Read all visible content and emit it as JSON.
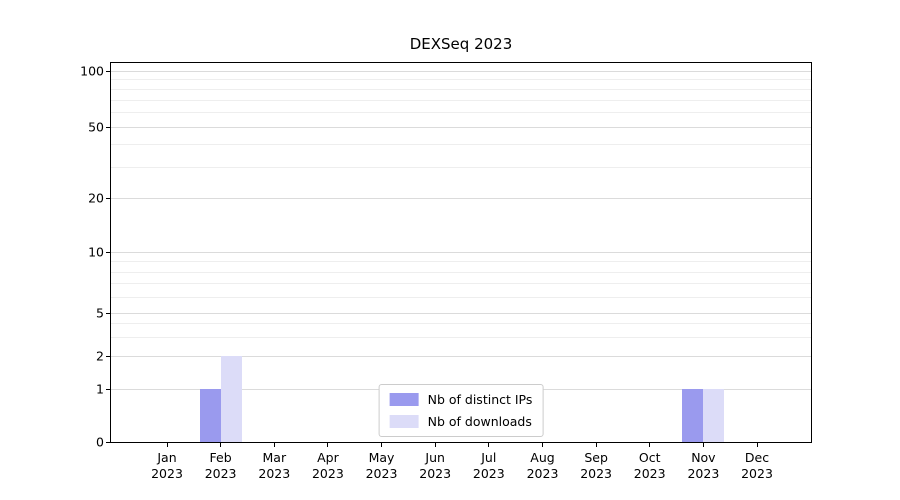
{
  "chart_data": {
    "type": "bar",
    "title": "DEXSeq 2023",
    "categories": [
      {
        "month": "Jan",
        "year": "2023"
      },
      {
        "month": "Feb",
        "year": "2023"
      },
      {
        "month": "Mar",
        "year": "2023"
      },
      {
        "month": "Apr",
        "year": "2023"
      },
      {
        "month": "May",
        "year": "2023"
      },
      {
        "month": "Jun",
        "year": "2023"
      },
      {
        "month": "Jul",
        "year": "2023"
      },
      {
        "month": "Aug",
        "year": "2023"
      },
      {
        "month": "Sep",
        "year": "2023"
      },
      {
        "month": "Oct",
        "year": "2023"
      },
      {
        "month": "Nov",
        "year": "2023"
      },
      {
        "month": "Dec",
        "year": "2023"
      }
    ],
    "series": [
      {
        "name": "Nb of distinct IPs",
        "color": "#9a9aee",
        "values": [
          0,
          1,
          0,
          0,
          0,
          0,
          0,
          0,
          0,
          0,
          1,
          0
        ]
      },
      {
        "name": "Nb of downloads",
        "color": "#dcdcf8",
        "values": [
          0,
          2,
          0,
          0,
          0,
          0,
          0,
          0,
          0,
          0,
          1,
          0
        ]
      }
    ],
    "xlabel": "",
    "ylabel": "",
    "yscale": "symlog",
    "yticks": [
      0,
      1,
      2,
      5,
      10,
      20,
      50,
      100
    ],
    "ylim": [
      0,
      110
    ],
    "grid": "horizontal",
    "legend_position": "lower center"
  }
}
